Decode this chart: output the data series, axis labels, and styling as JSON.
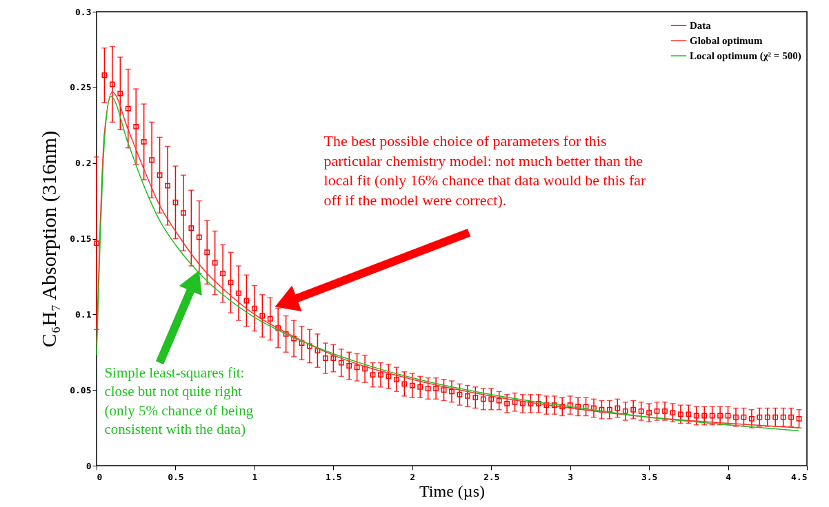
{
  "chart_data": {
    "type": "scatter",
    "xlabel": "Time (µs)",
    "ylabel": "C₆H₇ Absorption (316nm)",
    "xlim": [
      0,
      4.5
    ],
    "ylim": [
      0,
      0.3
    ],
    "xticks": [
      0,
      0.5,
      1,
      1.5,
      2,
      2.5,
      3,
      3.5,
      4,
      4.5
    ],
    "yticks": [
      0,
      0.05,
      0.1,
      0.15,
      0.2,
      0.25,
      0.3
    ],
    "legend": "top right",
    "series": [
      {
        "name": "Data",
        "color": "#ff0000",
        "marker": "square",
        "x": [
          0,
          0.05,
          0.1,
          0.15,
          0.2,
          0.25,
          0.3,
          0.35,
          0.4,
          0.45,
          0.5,
          0.55,
          0.6,
          0.65,
          0.7,
          0.75,
          0.8,
          0.85,
          0.9,
          0.95,
          1,
          1.05,
          1.1,
          1.15,
          1.2,
          1.25,
          1.3,
          1.35,
          1.4,
          1.45,
          1.5,
          1.55,
          1.6,
          1.65,
          1.7,
          1.75,
          1.8,
          1.85,
          1.9,
          1.95,
          2,
          2.05,
          2.1,
          2.15,
          2.2,
          2.25,
          2.3,
          2.35,
          2.4,
          2.45,
          2.5,
          2.55,
          2.6,
          2.65,
          2.7,
          2.75,
          2.8,
          2.85,
          2.9,
          2.95,
          3,
          3.05,
          3.1,
          3.15,
          3.2,
          3.25,
          3.3,
          3.35,
          3.4,
          3.45,
          3.5,
          3.55,
          3.6,
          3.65,
          3.7,
          3.75,
          3.8,
          3.85,
          3.9,
          3.95,
          4,
          4.05,
          4.1,
          4.15,
          4.2,
          4.25,
          4.3,
          4.35,
          4.4,
          4.45
        ],
        "values": [
          0.147,
          0.258,
          0.252,
          0.246,
          0.236,
          0.224,
          0.214,
          0.202,
          0.192,
          0.185,
          0.174,
          0.167,
          0.157,
          0.151,
          0.141,
          0.134,
          0.127,
          0.121,
          0.114,
          0.109,
          0.104,
          0.099,
          0.097,
          0.091,
          0.087,
          0.084,
          0.081,
          0.079,
          0.076,
          0.071,
          0.071,
          0.068,
          0.066,
          0.065,
          0.064,
          0.06,
          0.06,
          0.059,
          0.057,
          0.054,
          0.053,
          0.052,
          0.051,
          0.051,
          0.05,
          0.049,
          0.047,
          0.046,
          0.045,
          0.044,
          0.044,
          0.043,
          0.041,
          0.042,
          0.041,
          0.041,
          0.041,
          0.04,
          0.04,
          0.039,
          0.04,
          0.039,
          0.039,
          0.038,
          0.037,
          0.037,
          0.038,
          0.036,
          0.037,
          0.036,
          0.035,
          0.036,
          0.036,
          0.035,
          0.034,
          0.034,
          0.033,
          0.033,
          0.033,
          0.033,
          0.033,
          0.032,
          0.032,
          0.031,
          0.032,
          0.032,
          0.032,
          0.032,
          0.032,
          0.031
        ],
        "errors": [
          0.057,
          0.018,
          0.025,
          0.024,
          0.026,
          0.025,
          0.025,
          0.025,
          0.025,
          0.026,
          0.024,
          0.025,
          0.025,
          0.024,
          0.021,
          0.021,
          0.019,
          0.02,
          0.018,
          0.017,
          0.015,
          0.014,
          0.014,
          0.013,
          0.012,
          0.012,
          0.011,
          0.011,
          0.011,
          0.01,
          0.009,
          0.009,
          0.009,
          0.009,
          0.009,
          0.008,
          0.008,
          0.008,
          0.008,
          0.008,
          0.008,
          0.007,
          0.007,
          0.007,
          0.007,
          0.007,
          0.007,
          0.007,
          0.007,
          0.007,
          0.007,
          0.006,
          0.006,
          0.006,
          0.006,
          0.006,
          0.006,
          0.006,
          0.006,
          0.006,
          0.006,
          0.006,
          0.006,
          0.006,
          0.006,
          0.006,
          0.006,
          0.006,
          0.006,
          0.006,
          0.006,
          0.006,
          0.006,
          0.006,
          0.006,
          0.006,
          0.006,
          0.006,
          0.006,
          0.006,
          0.006,
          0.006,
          0.006,
          0.006,
          0.006,
          0.006,
          0.006,
          0.006,
          0.006,
          0.006
        ]
      },
      {
        "name": "Global optimum",
        "type": "line",
        "color": "#ff3030",
        "x": [
          0,
          0.02,
          0.05,
          0.1,
          0.2,
          0.3,
          0.4,
          0.5,
          0.6,
          0.7,
          0.8,
          1,
          1.2,
          1.5,
          2,
          2.5,
          3,
          3.5,
          4,
          4.45
        ],
        "values": [
          0.08,
          0.15,
          0.22,
          0.247,
          0.222,
          0.196,
          0.172,
          0.155,
          0.14,
          0.127,
          0.117,
          0.1,
          0.088,
          0.073,
          0.057,
          0.046,
          0.038,
          0.032,
          0.028,
          0.025
        ]
      },
      {
        "name": "Local optimum (χ² = 500)",
        "type": "line",
        "color": "#22c022",
        "x": [
          0,
          0.02,
          0.05,
          0.09,
          0.2,
          0.3,
          0.4,
          0.5,
          0.6,
          0.7,
          0.8,
          1,
          1.2,
          1.5,
          2,
          2.5,
          3,
          3.5,
          4,
          4.45
        ],
        "values": [
          0.073,
          0.14,
          0.215,
          0.244,
          0.213,
          0.185,
          0.162,
          0.146,
          0.133,
          0.122,
          0.113,
          0.098,
          0.087,
          0.074,
          0.058,
          0.047,
          0.039,
          0.032,
          0.027,
          0.023
        ]
      }
    ],
    "annotations": [
      "The best possible choice of parameters for this particular chemistry model: not much better than the local fit (only 16% chance that data would be this far off if the model were correct).",
      "Simple least-squares fit: close but not quite right (only 5% chance of being consistent with the data)"
    ]
  }
}
